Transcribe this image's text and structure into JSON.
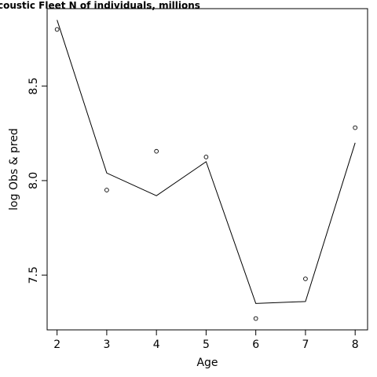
{
  "chart_data": {
    "type": "line",
    "title": "coustic Fleet   N of individuals, millions",
    "xlabel": "Age",
    "ylabel": "log Obs & pred",
    "xlim": [
      1.8,
      8.25
    ],
    "ylim": [
      7.21,
      8.91
    ],
    "x_ticks": [
      2,
      3,
      4,
      5,
      6,
      7,
      8
    ],
    "y_ticks": [
      7.5,
      8.0,
      8.5
    ],
    "x_tick_labels": [
      "2",
      "3",
      "4",
      "5",
      "6",
      "7",
      "8"
    ],
    "y_tick_labels": [
      "7.5",
      "8.0",
      "8.5"
    ],
    "grid": false,
    "series": [
      {
        "role": "observed",
        "style": "points",
        "x": [
          2,
          3,
          4,
          5,
          6,
          7,
          8
        ],
        "y": [
          8.8,
          7.95,
          8.155,
          8.125,
          7.27,
          7.48,
          8.28
        ]
      },
      {
        "role": "predicted",
        "style": "line",
        "x": [
          2,
          3,
          4,
          5,
          6,
          7,
          8
        ],
        "y": [
          8.85,
          8.04,
          7.92,
          8.1,
          7.35,
          7.36,
          8.2
        ]
      }
    ]
  }
}
